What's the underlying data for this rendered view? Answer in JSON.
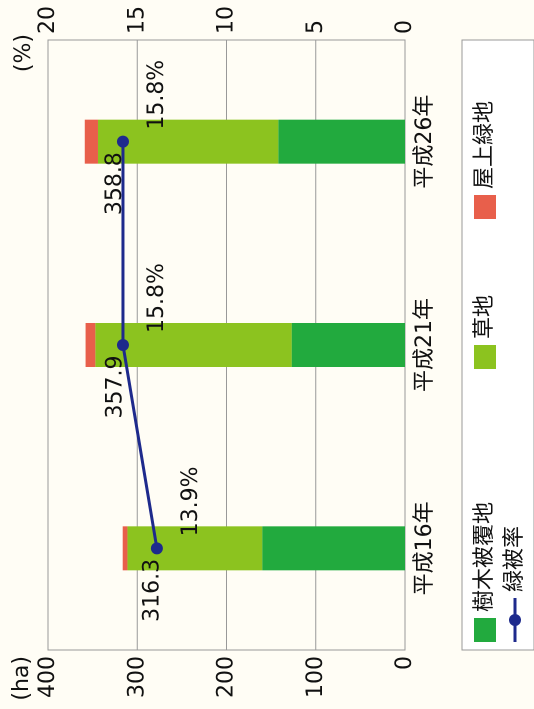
{
  "chart_data": {
    "type": "bar",
    "categories": [
      "平成16年",
      "平成21年",
      "平成26年"
    ],
    "series": [
      {
        "name": "樹木被覆地",
        "color": "#22aa3e",
        "values": [
          160,
          127,
          142
        ]
      },
      {
        "name": "草地",
        "color": "#8cc31f",
        "values": [
          151,
          220,
          202
        ]
      },
      {
        "name": "屋上緑地",
        "color": "#e85f4b",
        "values": [
          5.3,
          10.9,
          14.8
        ]
      },
      {
        "name": "緑被率",
        "type": "line",
        "axis": "y2",
        "color": "#1e2a8c",
        "values": [
          13.9,
          15.8,
          15.8
        ],
        "value_labels": [
          "13.9%",
          "15.8%",
          "15.8%"
        ]
      }
    ],
    "total_labels": [
      316.3,
      357.9,
      358.8
    ],
    "y_label": "(ha)",
    "y2_label": "(%)",
    "ylim": [
      0,
      400
    ],
    "yticks": [
      0,
      100,
      200,
      300,
      400
    ],
    "y2lim": [
      0,
      20
    ],
    "y2ticks": [
      0,
      5,
      10,
      15,
      20
    ],
    "grid": true,
    "legend": "bottom",
    "rotation": -90
  }
}
